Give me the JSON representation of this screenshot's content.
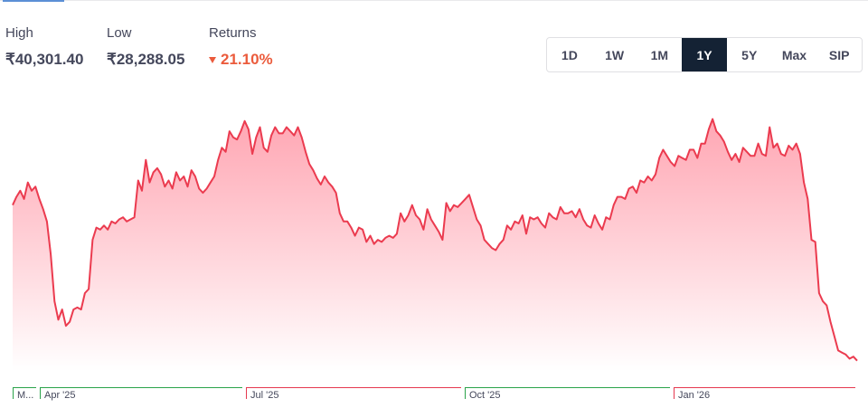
{
  "stats": {
    "high": {
      "label": "High",
      "value": "₹40,301.40"
    },
    "low": {
      "label": "Low",
      "value": "₹28,288.05"
    },
    "returns": {
      "label": "Returns",
      "value": "21.10%",
      "direction": "down"
    }
  },
  "ranges": {
    "options": [
      "1D",
      "1W",
      "1M",
      "1Y",
      "5Y",
      "Max",
      "SIP"
    ],
    "selected": "1Y"
  },
  "colors": {
    "line": "#eb3b4f",
    "positive": "#2aa34a",
    "negative": "#e53950",
    "text": "#44475b",
    "active_bg": "#142234"
  },
  "chart_data": {
    "type": "area",
    "x_labels": [
      "M...",
      "Apr '25",
      "Jul '25",
      "Oct '25",
      "Jan '26"
    ],
    "x_label_colors": [
      "positive",
      "positive",
      "negative",
      "positive",
      "negative"
    ],
    "ylim": [
      28288.05,
      40301.4
    ],
    "values": [
      35900,
      36300,
      36600,
      36200,
      37000,
      36600,
      36800,
      36200,
      35700,
      35100,
      33500,
      31200,
      30300,
      30800,
      30000,
      30200,
      30800,
      30900,
      30800,
      31600,
      31800,
      34200,
      34800,
      34700,
      34900,
      34700,
      35100,
      35000,
      35200,
      35300,
      35100,
      35200,
      35300,
      37100,
      36600,
      38100,
      37000,
      37500,
      37700,
      37400,
      36800,
      37100,
      36700,
      37500,
      37100,
      37300,
      36800,
      37600,
      37300,
      36700,
      36500,
      36700,
      37000,
      37300,
      38100,
      38700,
      38500,
      39500,
      39200,
      39100,
      39500,
      40000,
      39600,
      38400,
      39200,
      39700,
      38700,
      38500,
      39300,
      39700,
      39400,
      39400,
      39700,
      39500,
      39300,
      39700,
      39200,
      38500,
      37900,
      37600,
      37200,
      36900,
      37300,
      37000,
      36800,
      36500,
      35500,
      35100,
      35100,
      34800,
      34400,
      34800,
      34700,
      34100,
      34400,
      34000,
      34200,
      34100,
      34300,
      34400,
      34300,
      34500,
      35500,
      35100,
      35400,
      35900,
      35400,
      35200,
      34700,
      35700,
      35200,
      34900,
      34600,
      34200,
      36000,
      35600,
      35900,
      35800,
      36000,
      36200,
      36400,
      35800,
      35200,
      34900,
      34200,
      34000,
      33800,
      33700,
      34000,
      34200,
      34900,
      34700,
      35100,
      35000,
      35400,
      34500,
      35300,
      35200,
      35300,
      35000,
      34800,
      35500,
      35300,
      35200,
      35800,
      35500,
      35500,
      35600,
      35300,
      35700,
      35200,
      34900,
      34800,
      35400,
      35000,
      34700,
      35300,
      35200,
      35900,
      36300,
      36300,
      36200,
      36700,
      36800,
      36500,
      37100,
      37000,
      37300,
      37100,
      37400,
      38200,
      38600,
      38300,
      38000,
      37800,
      38300,
      38200,
      38100,
      38600,
      38600,
      38200,
      38900,
      38900,
      39600,
      40100,
      39500,
      39300,
      39000,
      38500,
      38100,
      38400,
      38000,
      38700,
      38500,
      38300,
      38300,
      38900,
      38400,
      38300,
      39700,
      38700,
      38900,
      38400,
      38300,
      38800,
      38600,
      38900,
      38400,
      37000,
      36200,
      34200,
      34100,
      31600,
      31200,
      31000,
      30200,
      29500,
      28800,
      28700,
      28600,
      28400,
      28500,
      28300
    ]
  }
}
